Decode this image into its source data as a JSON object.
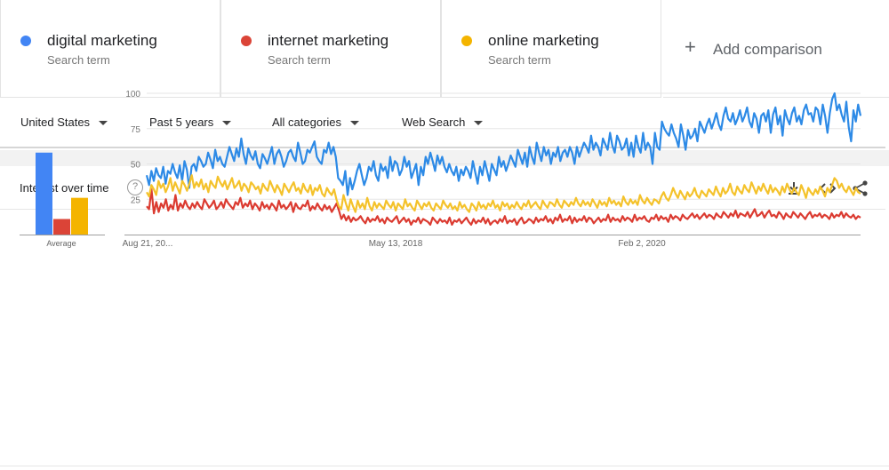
{
  "terms": [
    {
      "name": "digital marketing",
      "sub": "Search term",
      "color": "#4285f4"
    },
    {
      "name": "internet marketing",
      "sub": "Search term",
      "color": "#db4437"
    },
    {
      "name": "online marketing",
      "sub": "Search term",
      "color": "#f4b400"
    }
  ],
  "add_comparison": "Add comparison",
  "filters": {
    "region": "United States",
    "time": "Past 5 years",
    "category": "All categories",
    "search_type": "Web Search"
  },
  "panel": {
    "title": "Interest over time",
    "help": "?",
    "icons": [
      "download-icon",
      "embed-icon",
      "share-icon"
    ]
  },
  "chart_data": {
    "type": "line",
    "yticks": [
      25,
      50,
      75,
      100
    ],
    "ylim": [
      0,
      100
    ],
    "x_tick_labels": [
      "Aug 21, 20...",
      "May 13, 2018",
      "Feb 2, 2020"
    ],
    "average_label": "Average",
    "averages": [
      {
        "name": "digital marketing",
        "value": 58,
        "color": "#4285f4"
      },
      {
        "name": "internet marketing",
        "value": 11,
        "color": "#db4437"
      },
      {
        "name": "online marketing",
        "value": 26,
        "color": "#f4b400"
      }
    ],
    "series": [
      {
        "name": "digital marketing",
        "color": "#2d8ae6",
        "values": [
          42,
          35,
          45,
          38,
          47,
          42,
          40,
          48,
          36,
          45,
          43,
          50,
          44,
          40,
          49,
          38,
          52,
          46,
          33,
          48,
          50,
          45,
          55,
          52,
          48,
          50,
          58,
          53,
          47,
          60,
          52,
          55,
          50,
          48,
          55,
          62,
          57,
          52,
          61,
          55,
          68,
          57,
          50,
          61,
          56,
          53,
          59,
          50,
          47,
          57,
          54,
          50,
          56,
          62,
          50,
          57,
          60,
          55,
          48,
          52,
          58,
          60,
          55,
          52,
          65,
          58,
          50,
          52,
          60,
          58,
          62,
          66,
          55,
          52,
          50,
          60,
          58,
          65,
          57,
          62,
          55,
          40,
          38,
          35,
          45,
          28,
          40,
          32,
          38,
          45,
          50,
          42,
          35,
          40,
          48,
          45,
          52,
          42,
          38,
          50,
          45,
          48,
          40,
          55,
          45,
          52,
          50,
          42,
          46,
          55,
          48,
          52,
          40,
          45,
          50,
          35,
          48,
          42,
          55,
          50,
          58,
          52,
          45,
          56,
          50,
          55,
          48,
          44,
          50,
          45,
          42,
          48,
          38,
          46,
          42,
          48,
          45,
          40,
          52,
          44,
          36,
          48,
          42,
          52,
          45,
          38,
          50,
          46,
          42,
          55,
          48,
          52,
          45,
          50,
          56,
          52,
          48,
          60,
          55,
          50,
          58,
          48,
          62,
          55,
          50,
          65,
          58,
          52,
          62,
          56,
          60,
          50,
          58,
          55,
          62,
          52,
          58,
          60,
          55,
          62,
          58,
          50,
          62,
          55,
          60,
          65,
          62,
          58,
          70,
          60,
          65,
          62,
          56,
          68,
          64,
          60,
          72,
          63,
          58,
          70,
          66,
          60,
          62,
          68,
          56,
          65,
          55,
          70,
          62,
          58,
          72,
          60,
          65,
          62,
          50,
          72,
          62,
          60,
          80,
          75,
          72,
          70,
          78,
          72,
          68,
          62,
          78,
          70,
          60,
          74,
          68,
          70,
          75,
          66,
          80,
          76,
          72,
          78,
          82,
          75,
          80,
          86,
          78,
          74,
          84,
          90,
          82,
          80,
          86,
          78,
          82,
          88,
          80,
          84,
          90,
          80,
          76,
          86,
          82,
          72,
          84,
          86,
          80,
          88,
          72,
          85,
          90,
          78,
          84,
          70,
          88,
          82,
          78,
          86,
          90,
          80,
          84,
          78,
          88,
          92,
          85,
          86,
          80,
          90,
          88,
          78,
          92,
          84,
          72,
          86,
          96,
          100,
          88,
          92,
          85,
          80,
          94,
          76,
          66,
          88,
          80,
          92,
          84
        ]
      },
      {
        "name": "internet marketing",
        "color": "#db3b31",
        "values": [
          20,
          18,
          32,
          15,
          23,
          16,
          22,
          19,
          25,
          17,
          21,
          18,
          28,
          17,
          22,
          19,
          24,
          20,
          18,
          22,
          19,
          23,
          20,
          18,
          25,
          22,
          19,
          21,
          24,
          18,
          20,
          23,
          19,
          25,
          22,
          20,
          18,
          23,
          21,
          26,
          19,
          22,
          20,
          24,
          18,
          22,
          20,
          17,
          23,
          19,
          21,
          18,
          22,
          20,
          17,
          24,
          19,
          21,
          18,
          20,
          23,
          16,
          22,
          19,
          18,
          21,
          20,
          24,
          17,
          20,
          18,
          22,
          19,
          17,
          21,
          18,
          20,
          16,
          19,
          22,
          17,
          11,
          14,
          10,
          13,
          9,
          12,
          10,
          11,
          13,
          10,
          8,
          12,
          9,
          11,
          10,
          13,
          9,
          11,
          8,
          12,
          10,
          9,
          11,
          13,
          8,
          10,
          12,
          9,
          11,
          7,
          10,
          9,
          12,
          8,
          11,
          10,
          9,
          7,
          12,
          10,
          8,
          11,
          9,
          10,
          8,
          12,
          7,
          10,
          9,
          11,
          8,
          10,
          12,
          9,
          7,
          11,
          8,
          10,
          9,
          12,
          8,
          11,
          7,
          9,
          10,
          8,
          11,
          9,
          13,
          8,
          10,
          9,
          11,
          7,
          10,
          12,
          8,
          9,
          11,
          10,
          8,
          12,
          9,
          11,
          10,
          13,
          9,
          11,
          8,
          12,
          10,
          14,
          9,
          11,
          10,
          13,
          8,
          12,
          9,
          11,
          10,
          13,
          9,
          12,
          11,
          8,
          10,
          12,
          9,
          11,
          10,
          14,
          9,
          12,
          10,
          11,
          9,
          13,
          10,
          12,
          11,
          9,
          14,
          10,
          12,
          11,
          13,
          10,
          9,
          12,
          11,
          14,
          10,
          13,
          11,
          12,
          9,
          14,
          11,
          13,
          12,
          10,
          14,
          12,
          11,
          13,
          15,
          12,
          14,
          11,
          13,
          15,
          12,
          14,
          13,
          11,
          15,
          13,
          12,
          16,
          14,
          12,
          15,
          13,
          17,
          12,
          15,
          14,
          13,
          16,
          12,
          15,
          18,
          13,
          14,
          16,
          12,
          15,
          17,
          13,
          14,
          12,
          16,
          14,
          11,
          15,
          13,
          12,
          16,
          14,
          12,
          15,
          13,
          11,
          14,
          16,
          12,
          14,
          13,
          15,
          12,
          14,
          13,
          11,
          15,
          12,
          14,
          13,
          16,
          12,
          15,
          13,
          12,
          14,
          11,
          13,
          12
        ]
      },
      {
        "name": "online marketing",
        "color": "#f4c22b",
        "values": [
          30,
          27,
          35,
          32,
          28,
          38,
          33,
          36,
          30,
          34,
          40,
          31,
          37,
          33,
          29,
          38,
          35,
          31,
          36,
          42,
          33,
          37,
          34,
          39,
          32,
          36,
          30,
          38,
          35,
          33,
          41,
          37,
          34,
          38,
          32,
          36,
          40,
          33,
          35,
          38,
          31,
          36,
          34,
          30,
          37,
          35,
          32,
          34,
          29,
          36,
          33,
          31,
          38,
          34,
          30,
          35,
          32,
          28,
          36,
          33,
          30,
          34,
          37,
          31,
          33,
          29,
          36,
          32,
          30,
          35,
          28,
          33,
          31,
          35,
          29,
          27,
          33,
          30,
          28,
          32,
          25,
          20,
          18,
          28,
          22,
          17,
          25,
          20,
          16,
          24,
          19,
          22,
          18,
          26,
          20,
          17,
          23,
          19,
          22,
          20,
          18,
          24,
          21,
          19,
          23,
          17,
          22,
          20,
          18,
          25,
          20,
          22,
          19,
          17,
          24,
          21,
          18,
          22,
          20,
          23,
          19,
          17,
          22,
          20,
          18,
          24,
          21,
          19,
          22,
          18,
          20,
          17,
          23,
          19,
          21,
          18,
          16,
          22,
          20,
          17,
          23,
          19,
          21,
          18,
          22,
          20,
          24,
          19,
          21,
          17,
          23,
          20,
          22,
          18,
          21,
          19,
          23,
          20,
          18,
          22,
          20,
          24,
          19,
          21,
          23,
          20,
          18,
          24,
          21,
          19,
          23,
          22,
          20,
          25,
          21,
          19,
          24,
          22,
          20,
          23,
          21,
          26,
          22,
          20,
          24,
          21,
          23,
          20,
          25,
          22,
          19,
          24,
          21,
          23,
          20,
          26,
          22,
          24,
          21,
          23,
          20,
          27,
          23,
          21,
          25,
          22,
          24,
          21,
          28,
          24,
          22,
          26,
          23,
          21,
          25,
          24,
          22,
          27,
          30,
          26,
          24,
          28,
          33,
          29,
          26,
          31,
          28,
          25,
          30,
          27,
          29,
          33,
          28,
          26,
          31,
          29,
          27,
          32,
          30,
          28,
          34,
          30,
          27,
          33,
          29,
          31,
          36,
          30,
          28,
          34,
          31,
          29,
          35,
          32,
          30,
          37,
          33,
          29,
          34,
          31,
          36,
          32,
          29,
          35,
          30,
          33,
          31,
          28,
          34,
          30,
          36,
          32,
          29,
          33,
          30,
          28,
          35,
          31,
          26,
          33,
          30,
          28,
          32,
          29,
          34,
          31,
          27,
          33,
          30,
          35,
          40,
          38,
          33,
          36,
          32,
          30,
          34,
          31,
          28,
          33,
          30,
          29
        ]
      }
    ]
  }
}
